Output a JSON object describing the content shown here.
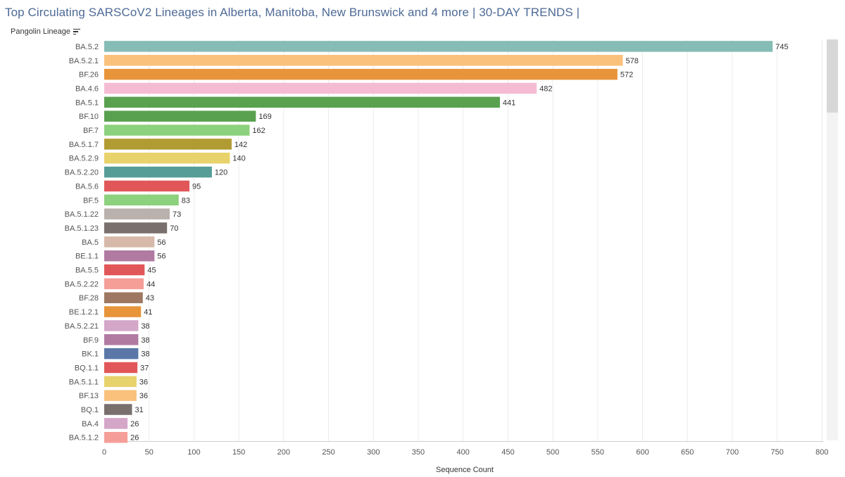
{
  "header": {
    "title": "Top Circulating SARSCoV2 Lineages in Alberta, Manitoba, New Brunswick and 4 more | 30-DAY TRENDS |",
    "dimension_label": "Pangolin Lineage",
    "sort_icon": "sort-descending-icon"
  },
  "chart_data": {
    "type": "bar",
    "orientation": "horizontal",
    "title": "Top Circulating SARSCoV2 Lineages in Alberta, Manitoba, New Brunswick and 4 more | 30-DAY TRENDS |",
    "xlabel": "Sequence Count",
    "ylabel": "Pangolin Lineage",
    "xlim": [
      0,
      800
    ],
    "xticks": [
      0,
      50,
      100,
      150,
      200,
      250,
      300,
      350,
      400,
      450,
      500,
      550,
      600,
      650,
      700,
      750,
      800
    ],
    "grid": true,
    "categories": [
      "BA.5.2",
      "BA.5.2.1",
      "BF.26",
      "BA.4.6",
      "BA.5.1",
      "BF.10",
      "BF.7",
      "BA.5.1.7",
      "BA.5.2.9",
      "BA.5.2.20",
      "BA.5.6",
      "BF.5",
      "BA.5.1.22",
      "BA.5.1.23",
      "BA.5",
      "BE.1.1",
      "BA.5.5",
      "BA.5.2.22",
      "BF.28",
      "BE.1.2.1",
      "BA.5.2.21",
      "BF.9",
      "BK.1",
      "BQ.1.1",
      "BA.5.1.1",
      "BF.13",
      "BQ.1",
      "BA.4",
      "BA.5.1.2"
    ],
    "values": [
      745,
      578,
      572,
      482,
      441,
      169,
      162,
      142,
      140,
      120,
      95,
      83,
      73,
      70,
      56,
      56,
      45,
      44,
      43,
      41,
      38,
      38,
      38,
      37,
      36,
      36,
      31,
      26,
      26
    ],
    "colors": [
      "#86bcb6",
      "#f9c17c",
      "#e8943a",
      "#f4bbd3",
      "#59a14f",
      "#59a14f",
      "#8cd17d",
      "#b19b33",
      "#e8d26b",
      "#559d96",
      "#e15759",
      "#8cd17d",
      "#bab0ac",
      "#79706e",
      "#d6b9a9",
      "#b07aa1",
      "#e15759",
      "#f59e98",
      "#9d7761",
      "#e8943a",
      "#d4a6c8",
      "#b07aa1",
      "#5a77a8",
      "#e15759",
      "#e8d26b",
      "#f9c17c",
      "#79706e",
      "#d4a6c8",
      "#f59e98"
    ]
  }
}
